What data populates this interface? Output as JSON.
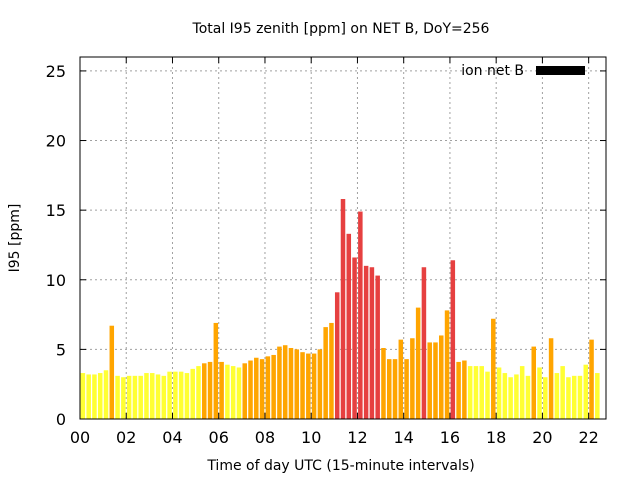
{
  "chart_data": {
    "type": "bar",
    "title": "Total I95 zenith [ppm] on NET B, DoY=256",
    "xlabel": "Time of day UTC (15-minute intervals)",
    "ylabel": "I95 [ppm]",
    "xlim": [
      0,
      22.75
    ],
    "ylim": [
      0,
      26
    ],
    "x_ticks": [
      0,
      2,
      4,
      6,
      8,
      10,
      12,
      14,
      16,
      18,
      20,
      22
    ],
    "x_tick_labels": [
      "00",
      "02",
      "04",
      "06",
      "08",
      "10",
      "12",
      "14",
      "16",
      "18",
      "20",
      "22"
    ],
    "y_ticks": [
      0,
      5,
      10,
      15,
      20,
      25
    ],
    "y_tick_labels": [
      "0",
      "5",
      "10",
      "15",
      "20",
      "25"
    ],
    "interval_hours": 0.25,
    "grid": true,
    "legend": {
      "label": "ion net B",
      "position": "top-right",
      "color": "#000000"
    },
    "color_bins": [
      {
        "max": 4,
        "color": "#ffff33"
      },
      {
        "max": 9,
        "color": "#ffa500"
      },
      {
        "max": 999,
        "color": "#e64040"
      }
    ],
    "values": [
      3.3,
      3.2,
      3.2,
      3.3,
      3.5,
      6.7,
      3.1,
      3.0,
      3.1,
      3.1,
      3.1,
      3.3,
      3.3,
      3.2,
      3.1,
      3.4,
      3.4,
      3.4,
      3.3,
      3.6,
      3.8,
      4.0,
      4.1,
      6.9,
      4.1,
      3.9,
      3.8,
      3.7,
      4.0,
      4.2,
      4.4,
      4.3,
      4.5,
      4.6,
      5.2,
      5.3,
      5.1,
      5.0,
      4.8,
      4.7,
      4.7,
      5.0,
      6.6,
      6.9,
      9.1,
      15.8,
      13.3,
      11.6,
      14.9,
      11.0,
      10.9,
      10.3,
      5.1,
      4.3,
      4.3,
      5.7,
      4.3,
      5.8,
      8.0,
      10.9,
      5.5,
      5.5,
      6.0,
      7.8,
      11.4,
      4.1,
      4.2,
      3.8,
      3.8,
      3.8,
      3.4,
      7.2,
      3.7,
      3.3,
      3.0,
      3.2,
      3.8,
      3.1,
      5.2,
      3.7,
      3.0,
      5.8,
      3.3,
      3.8,
      3.0,
      3.1,
      3.1,
      3.9,
      5.7,
      3.3
    ]
  }
}
